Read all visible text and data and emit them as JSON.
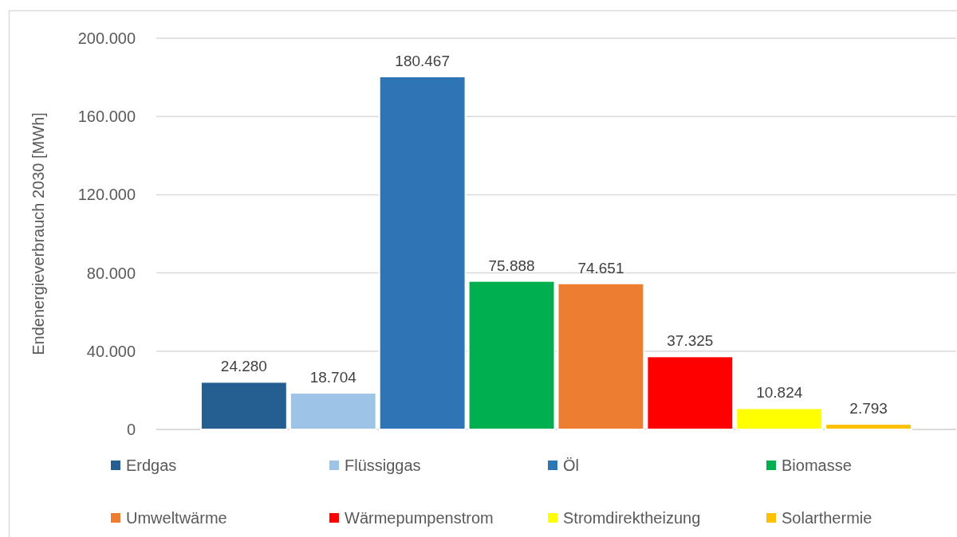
{
  "chart_data": {
    "type": "bar",
    "ylabel": "Endenergieverbrauch 2030 [MWh]",
    "categories": [
      null
    ],
    "series": [
      {
        "name": "Erdgas",
        "color": "#255e91",
        "values": [
          24280
        ],
        "value_labels": [
          "24.280"
        ]
      },
      {
        "name": "Flüssiggas",
        "color": "#9dc3e6",
        "values": [
          18704
        ],
        "value_labels": [
          "18.704"
        ]
      },
      {
        "name": "Öl",
        "color": "#2e75b6",
        "values": [
          180467
        ],
        "value_labels": [
          "180.467"
        ]
      },
      {
        "name": "Biomasse",
        "color": "#00b050",
        "values": [
          75888
        ],
        "value_labels": [
          "75.888"
        ]
      },
      {
        "name": "Umweltwärme",
        "color": "#ed7d31",
        "values": [
          74651
        ],
        "value_labels": [
          "74.651"
        ]
      },
      {
        "name": "Wärmepumpenstrom",
        "color": "#ff0000",
        "values": [
          37325
        ],
        "value_labels": [
          "37.325"
        ]
      },
      {
        "name": "Stromdirektheizung",
        "color": "#ffff00",
        "values": [
          10824
        ],
        "value_labels": [
          "10.824"
        ]
      },
      {
        "name": "Solarthermie",
        "color": "#ffc000",
        "values": [
          2793
        ],
        "value_labels": [
          "2.793"
        ]
      }
    ],
    "ylim": [
      0,
      200000
    ],
    "yticks": [
      0,
      {
        "value": 40000,
        "label": "40.000"
      },
      {
        "value": 80000,
        "label": "80.000"
      },
      {
        "value": 120000,
        "label": "120.000"
      },
      {
        "value": 160000,
        "label": "160.000"
      },
      {
        "value": 200000,
        "label": "200.000"
      }
    ],
    "grid": "y",
    "legend": "bottom"
  }
}
